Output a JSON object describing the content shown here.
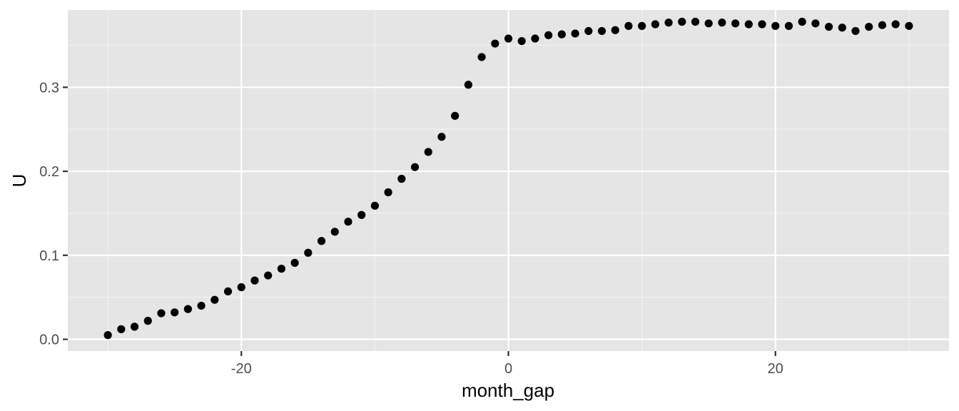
{
  "chart_data": {
    "type": "scatter",
    "title": "",
    "xlabel": "month_gap",
    "ylabel": "U",
    "xlim": [
      -33,
      33
    ],
    "ylim": [
      -0.014,
      0.392
    ],
    "x_major_ticks": [
      -20,
      0,
      20
    ],
    "x_tick_labels": [
      "-20",
      "0",
      "20"
    ],
    "x_minor_ticks": [
      -30,
      -10,
      10,
      30
    ],
    "y_major_ticks": [
      0.0,
      0.1,
      0.2,
      0.3
    ],
    "y_tick_labels": [
      "0.0",
      "0.1",
      "0.2",
      "0.3"
    ],
    "y_minor_ticks": [
      0.05,
      0.15,
      0.25,
      0.35
    ],
    "grid": true,
    "legend": "none",
    "point_color": "#000000",
    "panel_color": "#e5e5e5",
    "grid_color": "#ffffff",
    "x": [
      -30,
      -29,
      -28,
      -27,
      -26,
      -25,
      -24,
      -23,
      -22,
      -21,
      -20,
      -19,
      -18,
      -17,
      -16,
      -15,
      -14,
      -13,
      -12,
      -11,
      -10,
      -9,
      -8,
      -7,
      -6,
      -5,
      -4,
      -3,
      -2,
      -1,
      0,
      1,
      2,
      3,
      4,
      5,
      6,
      7,
      8,
      9,
      10,
      11,
      12,
      13,
      14,
      15,
      16,
      17,
      18,
      19,
      20,
      21,
      22,
      23,
      24,
      25,
      26,
      27,
      28,
      29,
      30
    ],
    "y": [
      0.005,
      0.012,
      0.015,
      0.022,
      0.031,
      0.032,
      0.036,
      0.04,
      0.047,
      0.057,
      0.062,
      0.07,
      0.076,
      0.084,
      0.091,
      0.103,
      0.117,
      0.128,
      0.14,
      0.148,
      0.159,
      0.175,
      0.191,
      0.205,
      0.223,
      0.241,
      0.266,
      0.303,
      0.336,
      0.352,
      0.358,
      0.355,
      0.358,
      0.362,
      0.363,
      0.364,
      0.367,
      0.367,
      0.368,
      0.373,
      0.373,
      0.375,
      0.377,
      0.378,
      0.378,
      0.376,
      0.377,
      0.376,
      0.375,
      0.375,
      0.373,
      0.373,
      0.378,
      0.376,
      0.372,
      0.371,
      0.367,
      0.372,
      0.374,
      0.375,
      0.373
    ]
  }
}
